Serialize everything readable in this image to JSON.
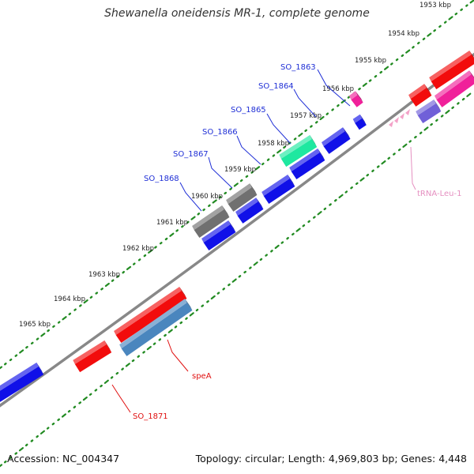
{
  "title": "Shewanella oneidensis MR-1, complete genome",
  "footer": {
    "accession": "Accession: NC_004347",
    "info": "Topology: circular; Length: 4,969,803 bp; Genes: 4,448"
  },
  "colors": {
    "backbone": "#8a8a8a",
    "ticks": "#228B22",
    "blue_label": "#1f2fd6",
    "red_label": "#e01010",
    "pink_label": "#e58fc0"
  },
  "ruler": {
    "unit": "kbp",
    "labels": [
      "1953 kbp",
      "1954 kbp",
      "1955 kbp",
      "1956 kbp",
      "1957 kbp",
      "1958 kbp",
      "1959 kbp",
      "1960 kbp",
      "1961 kbp",
      "1962 kbp",
      "1963 kbp",
      "1964 kbp",
      "1965 kbp"
    ]
  },
  "gene_labels": [
    {
      "id": "so1863",
      "text": "SO_1863",
      "color": "blue"
    },
    {
      "id": "so1864",
      "text": "SO_1864",
      "color": "blue"
    },
    {
      "id": "so1865",
      "text": "SO_1865",
      "color": "blue"
    },
    {
      "id": "so1866",
      "text": "SO_1866",
      "color": "blue"
    },
    {
      "id": "so1867",
      "text": "SO_1867",
      "color": "blue"
    },
    {
      "id": "so1868",
      "text": "SO_1868",
      "color": "blue"
    },
    {
      "id": "spea",
      "text": "speA",
      "color": "red"
    },
    {
      "id": "so1871",
      "text": "SO_1871",
      "color": "red"
    },
    {
      "id": "trna",
      "text": "tRNA-Leu-1",
      "color": "pink"
    }
  ]
}
